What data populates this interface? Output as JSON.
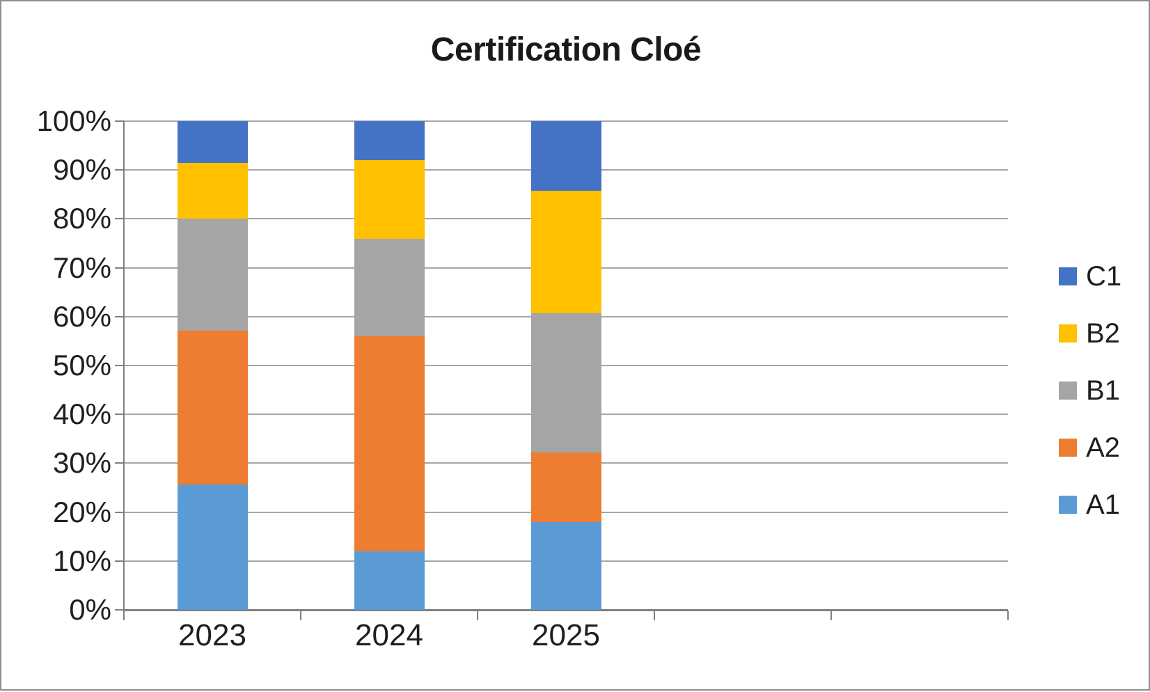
{
  "chart_data": {
    "type": "bar",
    "subtype": "stacked-100-percent",
    "title": "Certification Cloé",
    "categories": [
      "2023",
      "2024",
      "2025"
    ],
    "series": [
      {
        "name": "A1",
        "color": "#5B9BD5",
        "values": [
          25.7,
          12.0,
          17.9
        ]
      },
      {
        "name": "A2",
        "color": "#ED7D31",
        "values": [
          31.4,
          44.0,
          14.3
        ]
      },
      {
        "name": "B1",
        "color": "#A5A5A5",
        "values": [
          22.9,
          20.0,
          28.6
        ]
      },
      {
        "name": "B2",
        "color": "#FFC000",
        "values": [
          11.4,
          16.0,
          25.0
        ]
      },
      {
        "name": "C1",
        "color": "#4472C4",
        "values": [
          8.6,
          8.0,
          14.3
        ]
      }
    ],
    "y_axis": {
      "ticks": [
        "100%",
        "90%",
        "80%",
        "70%",
        "60%",
        "50%",
        "40%",
        "30%",
        "20%",
        "10%",
        "0%"
      ],
      "min": 0,
      "max": 100,
      "unit": "%"
    },
    "x_axis": {
      "labels": [
        "2023",
        "2024",
        "2025"
      ]
    },
    "legend": {
      "position": "right",
      "entries": [
        "C1",
        "B2",
        "B1",
        "A2",
        "A1"
      ]
    },
    "grid": true,
    "layout_hints": {
      "category_slots": 5,
      "bars_fill_first_slots": 3
    },
    "colors": {
      "background": "#FFFFFF",
      "frame_border": "#8F8F8F",
      "gridline": "#A6A6A6",
      "axis": "#808080",
      "text": "#1F1F1F"
    }
  }
}
